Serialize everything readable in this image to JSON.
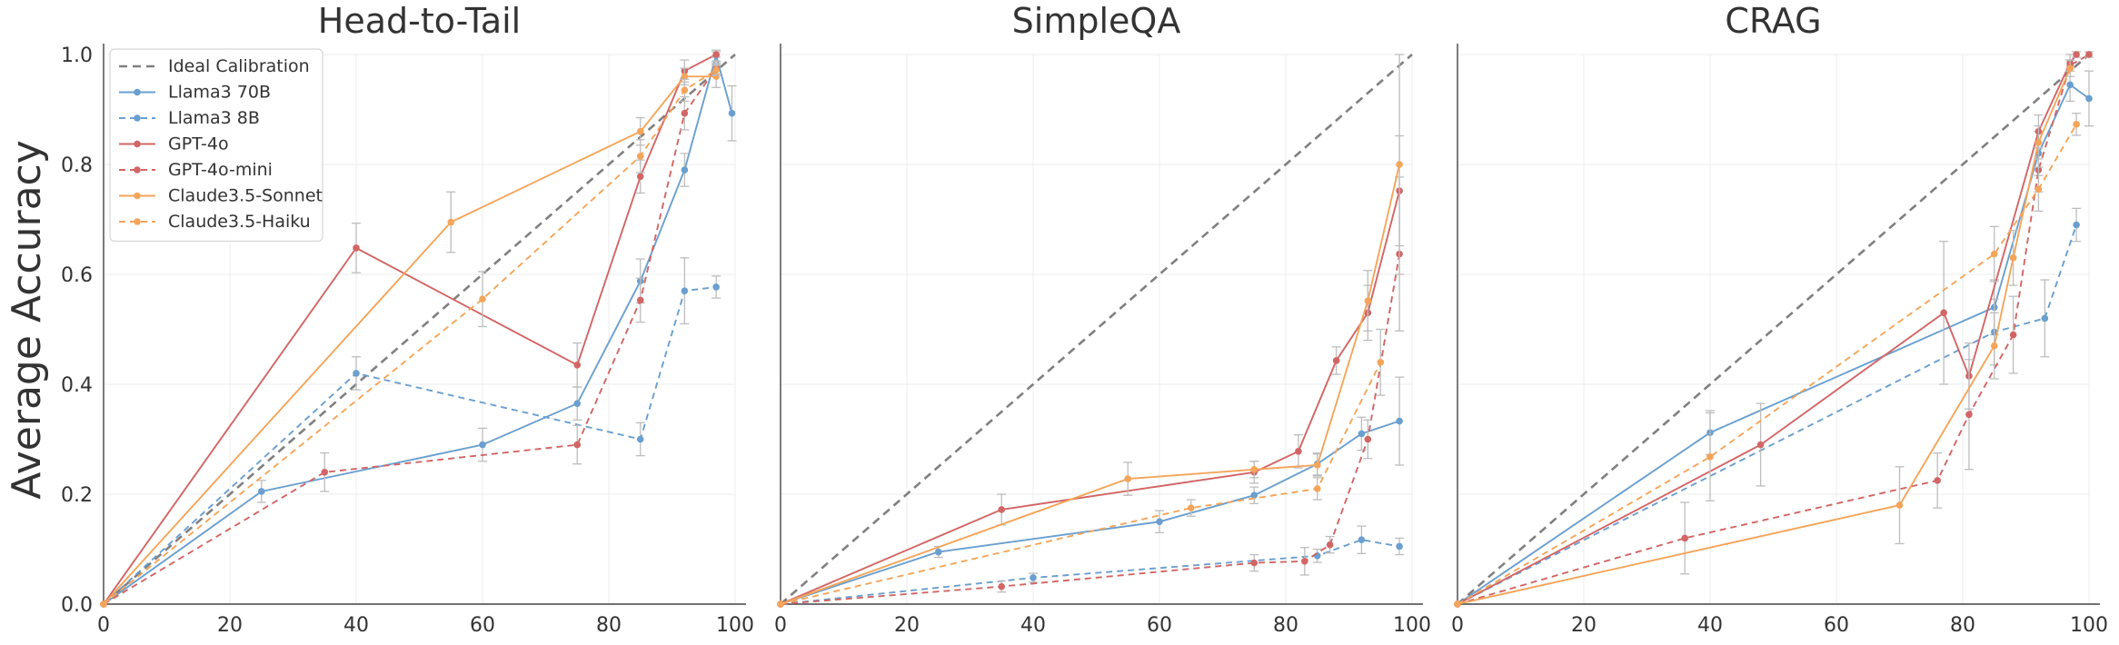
{
  "figure": {
    "ylabel": "Average Accuracy"
  },
  "styles": {
    "Ideal Calibration": {
      "color": "#808080",
      "dash": true
    },
    "Llama3 70B": {
      "color": "#6a9fcf",
      "dash": false
    },
    "Llama3 8B": {
      "color": "#6a9fcf",
      "dash": true
    },
    "GPT-4o": {
      "color": "#d26565",
      "dash": false
    },
    "GPT-4o-mini": {
      "color": "#d26565",
      "dash": true
    },
    "Claude3.5-Sonnet": {
      "color": "#f4a55a",
      "dash": false
    },
    "Claude3.5-Haiku": {
      "color": "#f4a55a",
      "dash": true
    }
  },
  "legend": {
    "placement": "upper-left",
    "entries": [
      "Ideal Calibration",
      "Llama3 70B",
      "Llama3 8B",
      "GPT-4o",
      "GPT-4o-mini",
      "Claude3.5-Sonnet",
      "Claude3.5-Haiku"
    ]
  },
  "chart_data": [
    {
      "type": "line",
      "title": "Head-to-Tail",
      "xlim": [
        0,
        100
      ],
      "ylim": [
        0,
        1
      ],
      "xticks": [
        "0",
        "20",
        "40",
        "60",
        "80",
        "100"
      ],
      "yticks": [
        "0.0",
        "0.2",
        "0.4",
        "0.6",
        "0.8",
        "1.0"
      ],
      "grid": true,
      "series": [
        {
          "name": "Ideal Calibration",
          "x": [
            0,
            100
          ],
          "y": [
            0,
            1.0
          ],
          "markers": false
        },
        {
          "name": "Llama3 70B",
          "x": [
            0,
            25,
            60,
            75,
            85,
            92,
            97,
            99.5
          ],
          "y": [
            0,
            0.205,
            0.29,
            0.365,
            0.588,
            0.79,
            0.998,
            0.893
          ],
          "err": [
            0,
            0.02,
            0.03,
            0.03,
            0.04,
            0.03,
            0.01,
            0.05
          ]
        },
        {
          "name": "Llama3 8B",
          "x": [
            0,
            40,
            85,
            92,
            97
          ],
          "y": [
            0,
            0.42,
            0.3,
            0.57,
            0.577
          ],
          "err": [
            0,
            0.03,
            0.03,
            0.06,
            0.02
          ]
        },
        {
          "name": "GPT-4o",
          "x": [
            0,
            40,
            75,
            85,
            92,
            97
          ],
          "y": [
            0,
            0.648,
            0.435,
            0.778,
            0.97,
            1.0
          ],
          "err": [
            0,
            0.045,
            0.04,
            0.03,
            0.02,
            0.005
          ]
        },
        {
          "name": "GPT-4o-mini",
          "x": [
            0,
            35,
            75,
            85,
            92,
            97
          ],
          "y": [
            0,
            0.24,
            0.29,
            0.553,
            0.893,
            0.975
          ],
          "err": [
            0,
            0.035,
            0.035,
            0.04,
            0.03,
            0.01
          ]
        },
        {
          "name": "Claude3.5-Sonnet",
          "x": [
            0,
            55,
            85,
            92,
            97
          ],
          "y": [
            0,
            0.695,
            0.86,
            0.96,
            0.96
          ],
          "err": [
            0,
            0.055,
            0.025,
            0.015,
            0.02
          ]
        },
        {
          "name": "Claude3.5-Haiku",
          "x": [
            0,
            60,
            85,
            92,
            97
          ],
          "y": [
            0,
            0.555,
            0.815,
            0.935,
            0.972
          ],
          "err": [
            0,
            0.05,
            0.03,
            0.02,
            0.01
          ]
        }
      ]
    },
    {
      "type": "line",
      "title": "SimpleQA",
      "xlim": [
        0,
        100
      ],
      "ylim": [
        0,
        1
      ],
      "xticks": [
        "0",
        "20",
        "40",
        "60",
        "80",
        "100"
      ],
      "yticks": [],
      "grid": true,
      "series": [
        {
          "name": "Ideal Calibration",
          "x": [
            0,
            100
          ],
          "y": [
            0,
            1.0
          ],
          "markers": false
        },
        {
          "name": "Llama3 70B",
          "x": [
            0,
            25,
            60,
            75,
            85,
            92,
            98
          ],
          "y": [
            0,
            0.095,
            0.15,
            0.198,
            0.255,
            0.31,
            0.333
          ],
          "err": [
            0,
            0.01,
            0.02,
            0.015,
            0.02,
            0.03,
            0.08
          ]
        },
        {
          "name": "Llama3 8B",
          "x": [
            0,
            40,
            85,
            92,
            98
          ],
          "y": [
            0,
            0.048,
            0.088,
            0.117,
            0.105
          ],
          "err": [
            0,
            0.008,
            0.012,
            0.025,
            0.015
          ]
        },
        {
          "name": "GPT-4o",
          "x": [
            0,
            35,
            75,
            82,
            88,
            93,
            98
          ],
          "y": [
            0,
            0.172,
            0.24,
            0.278,
            0.443,
            0.53,
            0.752
          ],
          "err": [
            0,
            0.028,
            0.02,
            0.03,
            0.025,
            0.05,
            0.1
          ]
        },
        {
          "name": "GPT-4o-mini",
          "x": [
            0,
            35,
            75,
            83,
            87,
            93,
            98
          ],
          "y": [
            0,
            0.032,
            0.075,
            0.078,
            0.108,
            0.3,
            0.637
          ],
          "err": [
            0,
            0.01,
            0.015,
            0.025,
            0.015,
            0.035,
            0.14
          ]
        },
        {
          "name": "Claude3.5-Sonnet",
          "x": [
            0,
            55,
            75,
            85,
            93,
            98
          ],
          "y": [
            0,
            0.228,
            0.245,
            0.253,
            0.552,
            0.8
          ],
          "err": [
            0,
            0.03,
            0.015,
            0.02,
            0.055,
            0.2
          ]
        },
        {
          "name": "Claude3.5-Haiku",
          "x": [
            0,
            65,
            85,
            95
          ],
          "y": [
            0,
            0.175,
            0.21,
            0.44
          ],
          "err": [
            0,
            0.015,
            0.02,
            0.06
          ]
        }
      ]
    },
    {
      "type": "line",
      "title": "CRAG",
      "xlim": [
        0,
        100
      ],
      "ylim": [
        0,
        1
      ],
      "xticks": [
        "0",
        "20",
        "40",
        "60",
        "80",
        "100"
      ],
      "yticks": [],
      "grid": true,
      "series": [
        {
          "name": "Ideal Calibration",
          "x": [
            0,
            100
          ],
          "y": [
            0,
            1.0
          ],
          "markers": false
        },
        {
          "name": "Llama3 70B",
          "x": [
            0,
            40,
            85,
            92,
            97,
            100
          ],
          "y": [
            0,
            0.312,
            0.54,
            0.82,
            0.945,
            0.92
          ],
          "err": [
            0,
            0.04,
            0.05,
            0.04,
            0.03,
            0.05
          ]
        },
        {
          "name": "Llama3 8B",
          "x": [
            0,
            85,
            93,
            98
          ],
          "y": [
            0,
            0.495,
            0.52,
            0.69
          ],
          "err": [
            0,
            0.06,
            0.07,
            0.03
          ]
        },
        {
          "name": "GPT-4o",
          "x": [
            0,
            48,
            77,
            81,
            92,
            97,
            98
          ],
          "y": [
            0,
            0.29,
            0.53,
            0.415,
            0.86,
            0.985,
            1.0
          ],
          "err": [
            0,
            0.075,
            0.13,
            0.06,
            0.03,
            0.015,
            0.005
          ]
        },
        {
          "name": "GPT-4o-mini",
          "x": [
            0,
            36,
            76,
            81,
            88,
            92,
            97,
            100
          ],
          "y": [
            0,
            0.12,
            0.225,
            0.345,
            0.49,
            0.79,
            0.98,
            1.0
          ],
          "err": [
            0,
            0.065,
            0.05,
            0.1,
            0.07,
            0.04,
            0.01,
            0.005
          ]
        },
        {
          "name": "Claude3.5-Sonnet",
          "x": [
            0,
            70,
            85,
            88,
            92,
            97
          ],
          "y": [
            0,
            0.18,
            0.47,
            0.63,
            0.84,
            0.975
          ],
          "err": [
            0,
            0.07,
            0.06,
            0.05,
            0.03,
            0.015
          ]
        },
        {
          "name": "Claude3.5-Haiku",
          "x": [
            0,
            40,
            85,
            92,
            98
          ],
          "y": [
            0,
            0.268,
            0.637,
            0.755,
            0.873
          ],
          "err": [
            0,
            0.08,
            0.05,
            0.04,
            0.02
          ]
        }
      ]
    }
  ]
}
